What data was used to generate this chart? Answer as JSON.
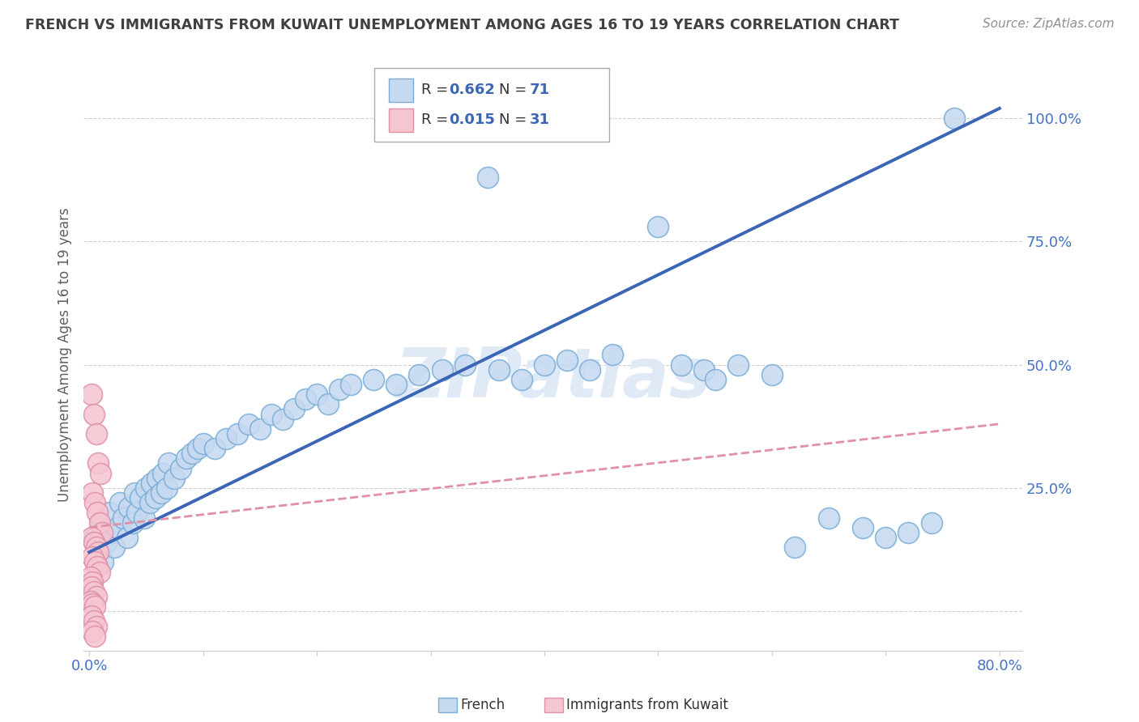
{
  "title": "FRENCH VS IMMIGRANTS FROM KUWAIT UNEMPLOYMENT AMONG AGES 16 TO 19 YEARS CORRELATION CHART",
  "source": "Source: ZipAtlas.com",
  "ylabel": "Unemployment Among Ages 16 to 19 years",
  "xlim": [
    -0.005,
    0.82
  ],
  "ylim": [
    -0.08,
    1.12
  ],
  "yticks": [
    0.0,
    0.25,
    0.5,
    0.75,
    1.0
  ],
  "ytick_labels": [
    "",
    "25.0%",
    "50.0%",
    "75.0%",
    "100.0%"
  ],
  "xtick_labels": [
    "0.0%",
    "",
    "",
    "",
    "",
    "",
    "",
    "",
    "80.0%"
  ],
  "french_R": 0.662,
  "french_N": 71,
  "kuwait_R": 0.015,
  "kuwait_N": 31,
  "blue_face_color": "#c5d9f0",
  "blue_edge_color": "#7badd6",
  "blue_line_color": "#3a66b5",
  "pink_face_color": "#f5c5d0",
  "pink_edge_color": "#e090a8",
  "pink_line_color": "#e090a8",
  "title_color": "#404040",
  "source_color": "#909090",
  "axis_label_color": "#4472c4",
  "legend_text_color": "#333333",
  "legend_val_color": "#3a66b5",
  "watermark": "ZIPatlas",
  "watermark_color": "#dce8f5",
  "background_color": "#ffffff",
  "grid_color": "#cccccc",
  "french_x": [
    0.005,
    0.008,
    0.01,
    0.012,
    0.015,
    0.018,
    0.02,
    0.022,
    0.025,
    0.027,
    0.03,
    0.033,
    0.035,
    0.038,
    0.04,
    0.042,
    0.045,
    0.048,
    0.05,
    0.053,
    0.055,
    0.058,
    0.06,
    0.063,
    0.065,
    0.068,
    0.07,
    0.075,
    0.08,
    0.085,
    0.09,
    0.095,
    0.1,
    0.11,
    0.12,
    0.13,
    0.14,
    0.15,
    0.16,
    0.17,
    0.18,
    0.19,
    0.2,
    0.21,
    0.22,
    0.23,
    0.25,
    0.27,
    0.29,
    0.31,
    0.33,
    0.35,
    0.36,
    0.38,
    0.4,
    0.42,
    0.44,
    0.46,
    0.5,
    0.52,
    0.54,
    0.55,
    0.57,
    0.6,
    0.62,
    0.65,
    0.68,
    0.7,
    0.72,
    0.74,
    0.76
  ],
  "french_y": [
    0.15,
    0.12,
    0.18,
    0.1,
    0.14,
    0.2,
    0.16,
    0.13,
    0.17,
    0.22,
    0.19,
    0.15,
    0.21,
    0.18,
    0.24,
    0.2,
    0.23,
    0.19,
    0.25,
    0.22,
    0.26,
    0.23,
    0.27,
    0.24,
    0.28,
    0.25,
    0.3,
    0.27,
    0.29,
    0.31,
    0.32,
    0.33,
    0.34,
    0.33,
    0.35,
    0.36,
    0.38,
    0.37,
    0.4,
    0.39,
    0.41,
    0.43,
    0.44,
    0.42,
    0.45,
    0.46,
    0.47,
    0.46,
    0.48,
    0.49,
    0.5,
    0.88,
    0.49,
    0.47,
    0.5,
    0.51,
    0.49,
    0.52,
    0.78,
    0.5,
    0.49,
    0.47,
    0.5,
    0.48,
    0.13,
    0.19,
    0.17,
    0.15,
    0.16,
    0.18,
    1.0
  ],
  "kuwait_x": [
    0.002,
    0.004,
    0.006,
    0.008,
    0.01,
    0.003,
    0.005,
    0.007,
    0.009,
    0.011,
    0.002,
    0.004,
    0.006,
    0.008,
    0.003,
    0.005,
    0.007,
    0.009,
    0.001,
    0.003,
    0.002,
    0.004,
    0.006,
    0.001,
    0.003,
    0.005,
    0.002,
    0.004,
    0.006,
    0.003,
    0.005
  ],
  "kuwait_y": [
    0.44,
    0.4,
    0.36,
    0.3,
    0.28,
    0.24,
    0.22,
    0.2,
    0.18,
    0.16,
    0.15,
    0.14,
    0.13,
    0.12,
    0.11,
    0.1,
    0.09,
    0.08,
    0.07,
    0.06,
    0.05,
    0.04,
    0.03,
    0.02,
    0.015,
    0.01,
    -0.01,
    -0.02,
    -0.03,
    -0.04,
    -0.05
  ],
  "french_line_x": [
    0.0,
    0.8
  ],
  "french_line_y": [
    0.12,
    1.02
  ],
  "kuwait_line_x": [
    0.0,
    0.8
  ],
  "kuwait_line_y": [
    0.17,
    0.38
  ]
}
